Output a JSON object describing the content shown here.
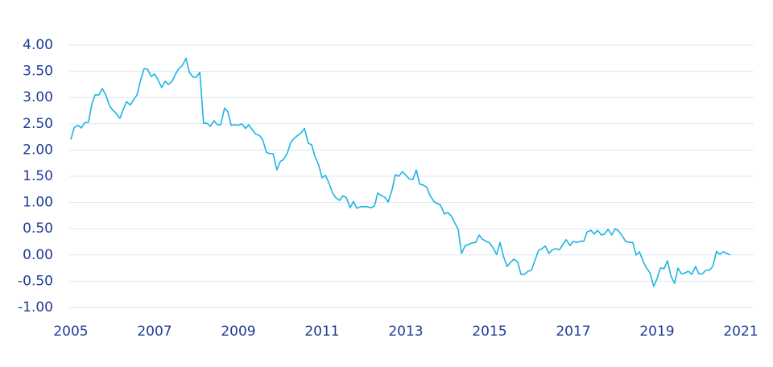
{
  "chart_data": {
    "type": "line",
    "x": [
      2005,
      2005.08,
      2005.17,
      2005.25,
      2005.33,
      2005.42,
      2005.5,
      2005.58,
      2005.67,
      2005.75,
      2005.83,
      2005.92,
      2006,
      2006.08,
      2006.17,
      2006.25,
      2006.33,
      2006.42,
      2006.5,
      2006.58,
      2006.67,
      2006.75,
      2006.83,
      2006.92,
      2007,
      2007.08,
      2007.17,
      2007.25,
      2007.33,
      2007.42,
      2007.5,
      2007.58,
      2007.67,
      2007.75,
      2007.83,
      2007.92,
      2008,
      2008.08,
      2008.17,
      2008.25,
      2008.33,
      2008.42,
      2008.5,
      2008.58,
      2008.67,
      2008.75,
      2008.83,
      2008.92,
      2009,
      2009.08,
      2009.17,
      2009.25,
      2009.33,
      2009.42,
      2009.5,
      2009.58,
      2009.67,
      2009.75,
      2009.83,
      2009.92,
      2010,
      2010.08,
      2010.17,
      2010.25,
      2010.33,
      2010.42,
      2010.5,
      2010.58,
      2010.67,
      2010.75,
      2010.83,
      2010.92,
      2011,
      2011.08,
      2011.17,
      2011.25,
      2011.33,
      2011.42,
      2011.5,
      2011.58,
      2011.67,
      2011.75,
      2011.83,
      2011.92,
      2012,
      2012.08,
      2012.17,
      2012.25,
      2012.33,
      2012.42,
      2012.5,
      2012.58,
      2012.67,
      2012.75,
      2012.83,
      2012.92,
      2013,
      2013.08,
      2013.17,
      2013.25,
      2013.33,
      2013.42,
      2013.5,
      2013.58,
      2013.67,
      2013.75,
      2013.83,
      2013.92,
      2014,
      2014.08,
      2014.17,
      2014.25,
      2014.33,
      2014.42,
      2014.5,
      2014.58,
      2014.67,
      2014.75,
      2014.83,
      2014.92,
      2015,
      2015.08,
      2015.17,
      2015.25,
      2015.33,
      2015.42,
      2015.5,
      2015.58,
      2015.67,
      2015.75,
      2015.83,
      2015.92,
      2016,
      2016.08,
      2016.17,
      2016.25,
      2016.33,
      2016.42,
      2016.5,
      2016.58,
      2016.67,
      2016.75,
      2016.83,
      2016.92,
      2017,
      2017.08,
      2017.17,
      2017.25,
      2017.33,
      2017.42,
      2017.5,
      2017.58,
      2017.67,
      2017.75,
      2017.83,
      2017.92,
      2018,
      2018.08,
      2018.17,
      2018.25,
      2018.33,
      2018.42,
      2018.5,
      2018.58,
      2018.67,
      2018.75,
      2018.83,
      2018.92,
      2019,
      2019.08,
      2019.17,
      2019.25,
      2019.33,
      2019.42,
      2019.5,
      2019.58,
      2019.67,
      2019.75,
      2019.83,
      2019.92,
      2020,
      2020.08,
      2020.17,
      2020.25,
      2020.33,
      2020.42,
      2020.5,
      2020.58,
      2020.67,
      2020.75
    ],
    "values": [
      2.2,
      2.43,
      2.47,
      2.42,
      2.52,
      2.53,
      2.87,
      3.05,
      3.05,
      3.17,
      3.06,
      2.85,
      2.76,
      2.7,
      2.6,
      2.77,
      2.92,
      2.86,
      2.96,
      3.05,
      3.34,
      3.55,
      3.54,
      3.4,
      3.45,
      3.34,
      3.19,
      3.31,
      3.25,
      3.31,
      3.45,
      3.55,
      3.62,
      3.75,
      3.48,
      3.39,
      3.39,
      3.48,
      2.51,
      2.51,
      2.45,
      2.56,
      2.48,
      2.48,
      2.8,
      2.73,
      2.47,
      2.48,
      2.47,
      2.5,
      2.41,
      2.48,
      2.39,
      2.3,
      2.28,
      2.2,
      1.96,
      1.93,
      1.93,
      1.62,
      1.78,
      1.82,
      1.94,
      2.14,
      2.22,
      2.28,
      2.33,
      2.41,
      2.13,
      2.1,
      1.88,
      1.71,
      1.47,
      1.52,
      1.36,
      1.18,
      1.09,
      1.04,
      1.13,
      1.09,
      0.9,
      1.02,
      0.89,
      0.92,
      0.92,
      0.92,
      0.9,
      0.93,
      1.18,
      1.13,
      1.1,
      1.01,
      1.24,
      1.53,
      1.5,
      1.59,
      1.52,
      1.45,
      1.44,
      1.62,
      1.35,
      1.33,
      1.29,
      1.13,
      1.02,
      0.98,
      0.95,
      0.78,
      0.81,
      0.75,
      0.61,
      0.49,
      0.03,
      0.18,
      0.2,
      0.23,
      0.24,
      0.38,
      0.3,
      0.26,
      0.23,
      0.14,
      0.01,
      0.24,
      -0.02,
      -0.22,
      -0.14,
      -0.08,
      -0.13,
      -0.37,
      -0.37,
      -0.31,
      -0.29,
      -0.11,
      0.09,
      0.12,
      0.17,
      0.03,
      0.1,
      0.12,
      0.1,
      0.2,
      0.29,
      0.18,
      0.26,
      0.24,
      0.26,
      0.26,
      0.44,
      0.47,
      0.4,
      0.47,
      0.38,
      0.4,
      0.49,
      0.38,
      0.5,
      0.46,
      0.36,
      0.26,
      0.24,
      0.24,
      0.0,
      0.06,
      -0.13,
      -0.25,
      -0.34,
      -0.6,
      -0.45,
      -0.25,
      -0.26,
      -0.11,
      -0.4,
      -0.54,
      -0.25,
      -0.36,
      -0.34,
      -0.31,
      -0.37,
      -0.22,
      -0.36,
      -0.36,
      -0.29,
      -0.29,
      -0.22,
      0.07,
      0.01,
      0.06,
      0.03,
      0.0
    ],
    "color": "#1cb5e3",
    "xlim": [
      2005,
      2021
    ],
    "xticks": [
      2005,
      2007,
      2009,
      2011,
      2013,
      2015,
      2017,
      2019,
      2021
    ],
    "ylim": [
      -1,
      4
    ],
    "yticks": [
      {
        "value": -1,
        "label": "-1.00"
      },
      {
        "value": -0.5,
        "label": "-0.50"
      },
      {
        "value": 0,
        "label": "0.00"
      },
      {
        "value": 0.5,
        "label": "0.50"
      },
      {
        "value": 1,
        "label": "1.00"
      },
      {
        "value": 1.5,
        "label": "1.50"
      },
      {
        "value": 2,
        "label": "2.00"
      },
      {
        "value": 2.5,
        "label": "2.50"
      },
      {
        "value": 3,
        "label": "3.00"
      },
      {
        "value": 3.5,
        "label": "3.50"
      },
      {
        "value": 4,
        "label": "4.00"
      }
    ],
    "grid": true
  }
}
